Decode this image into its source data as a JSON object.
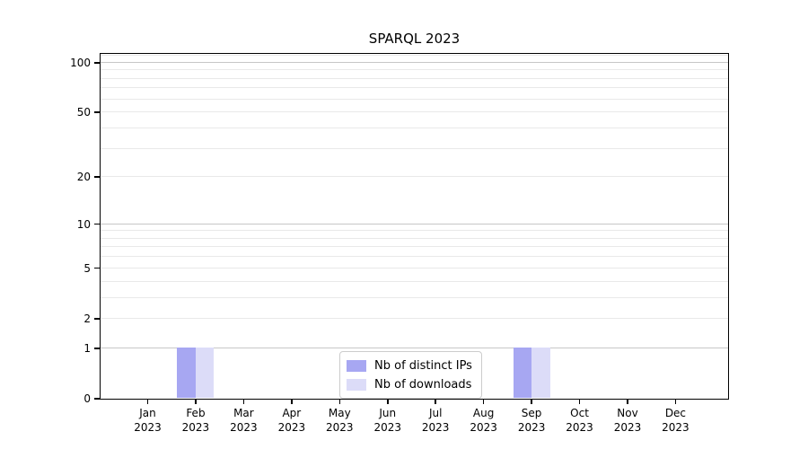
{
  "chart_data": {
    "type": "bar",
    "title": "SPARQL 2023",
    "categories": [
      "Jan 2023",
      "Feb 2023",
      "Mar 2023",
      "Apr 2023",
      "May 2023",
      "Jun 2023",
      "Jul 2023",
      "Aug 2023",
      "Sep 2023",
      "Oct 2023",
      "Nov 2023",
      "Dec 2023"
    ],
    "series": [
      {
        "name": "Nb of distinct IPs",
        "color": "#a7a7f2",
        "values": [
          0,
          1,
          0,
          0,
          0,
          0,
          0,
          0,
          1,
          0,
          0,
          0
        ]
      },
      {
        "name": "Nb of downloads",
        "color": "#dcdcf8",
        "values": [
          0,
          1,
          0,
          0,
          0,
          0,
          0,
          0,
          1,
          0,
          0,
          0
        ]
      }
    ],
    "xlabel": "",
    "ylabel": "",
    "y_axis": {
      "scale": "log(1+x)",
      "ylim": [
        0,
        113
      ],
      "tick_labels": [
        100,
        50,
        20,
        10,
        5,
        2,
        1,
        0
      ],
      "major_gridlines": [
        100,
        10,
        1
      ],
      "minor_gridlines": [
        110,
        90,
        80,
        70,
        60,
        50,
        40,
        30,
        20,
        9,
        8,
        7,
        6,
        5,
        4,
        3,
        2
      ]
    },
    "grid": true,
    "legend_position": "lower center (inside plot)"
  },
  "colors": {
    "major_grid": "#c7c7c7",
    "minor_grid": "#e9e9e9",
    "spine": "#000000",
    "text": "#000000",
    "background": "#ffffff"
  }
}
